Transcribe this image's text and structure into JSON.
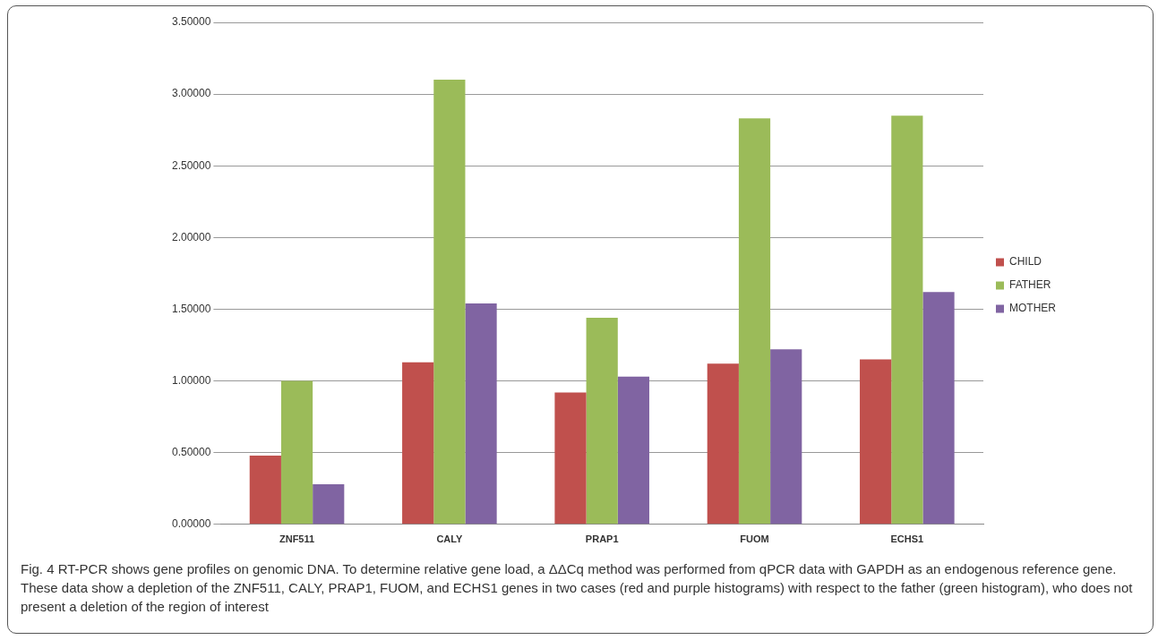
{
  "chart_data": {
    "type": "bar",
    "categories": [
      "ZNF511",
      "CALY",
      "PRAP1",
      "FUOM",
      "ECHS1"
    ],
    "series": [
      {
        "name": "CHILD",
        "color": "#c0504d",
        "values": [
          0.48,
          1.13,
          0.92,
          1.12,
          1.15
        ]
      },
      {
        "name": "FATHER",
        "color": "#9bbb59",
        "values": [
          1.0,
          3.1,
          1.44,
          2.83,
          2.85
        ]
      },
      {
        "name": "MOTHER",
        "color": "#8064a2",
        "values": [
          0.28,
          1.54,
          1.03,
          1.22,
          1.62
        ]
      }
    ],
    "ylim": [
      0,
      3.5
    ],
    "yticks": [
      {
        "value": 0,
        "label": "0.00000"
      },
      {
        "value": 0.5,
        "label": "0.50000"
      },
      {
        "value": 1,
        "label": "1.00000"
      },
      {
        "value": 1.5,
        "label": "1.50000"
      },
      {
        "value": 2,
        "label": "2.00000"
      },
      {
        "value": 2.5,
        "label": "2.50000"
      },
      {
        "value": 3,
        "label": "3.00000"
      },
      {
        "value": 3.5,
        "label": "3.50000"
      }
    ],
    "grid": "y",
    "legend": "right",
    "annotations": [
      "Fig. 4 RT-PCR shows gene profiles on genomic DNA. To determine relative gene load, a ΔΔCq method was performed from qPCR data with GAPDH as an endogenous reference gene. These data show a depletion of the ZNF511, CALY, PRAP1, FUOM, and ECHS1 genes in two cases (red and purple histograms) with respect to the father (green histogram), who does not present a deletion of the region of interest"
    ]
  }
}
